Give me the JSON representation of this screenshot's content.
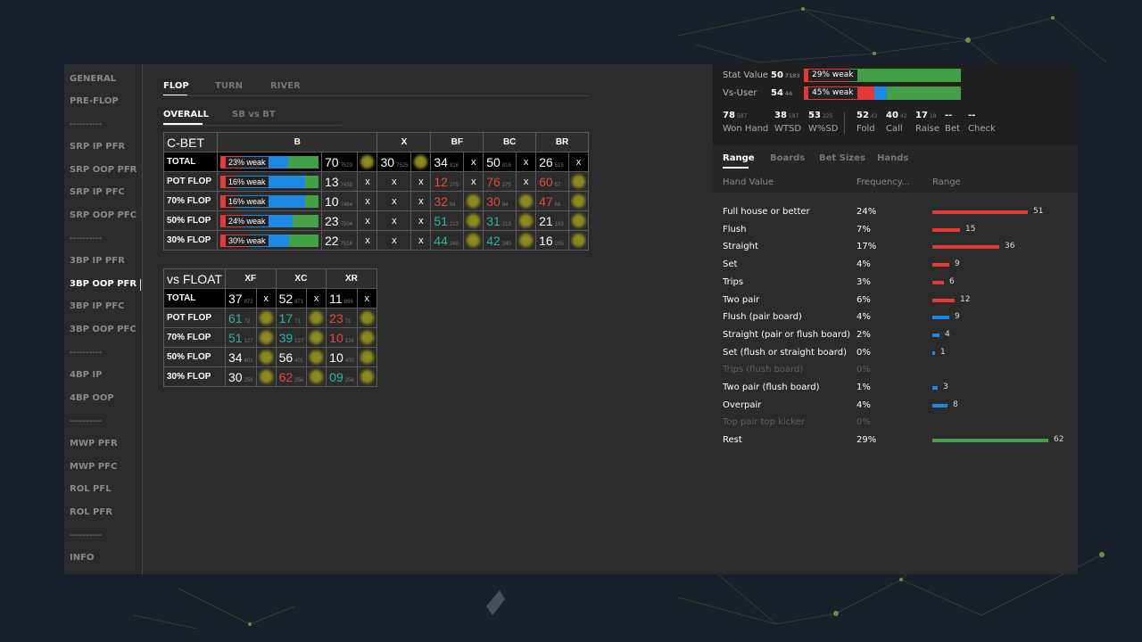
{
  "sidebar": {
    "items": [
      "GENERAL",
      "PRE-FLOP",
      "----------",
      "SRP IP PFR",
      "SRP OOP PFR",
      "SRP IP PFC",
      "SRP OOP PFC",
      "----------",
      "3BP IP PFR",
      "3BP OOP PFR",
      "3BP IP PFC",
      "3BP OOP PFC",
      "----------",
      "4BP IP",
      "4BP OOP",
      "----------",
      "MWP PFR",
      "MWP PFC",
      "ROL PFL",
      "ROL PFR",
      "----------",
      "INFO"
    ],
    "active": "3BP OOP PFR"
  },
  "street_tabs": [
    "FLOP",
    "TURN",
    "RIVER"
  ],
  "sub_tabs": [
    "OVERALL",
    "SB vs BT"
  ],
  "cbet": {
    "title": "C-BET",
    "headers": [
      "B",
      "X",
      "BF",
      "BC",
      "BR"
    ],
    "rows": [
      {
        "label": "TOTAL",
        "weak": "23% weak",
        "pct": [
          23,
          46,
          31
        ],
        "b": "70",
        "bs": "7523",
        "x": "30",
        "xs": "7525",
        "bf": "34",
        "bfs": "816",
        "bfc": "white",
        "bc": "50",
        "bcs": "816",
        "bcc": "white",
        "br": "26",
        "brs": "515",
        "brc": "white"
      },
      {
        "label": "POT FLOP",
        "weak": "16% weak",
        "pct": [
          16,
          70,
          14
        ],
        "b": "13",
        "bs": "7439",
        "x": "x",
        "xs": "",
        "bf": "12",
        "bfs": "275",
        "bfc": "red",
        "bc": "76",
        "bcs": "275",
        "bcc": "red",
        "br": "60",
        "brs": "57",
        "brc": "red"
      },
      {
        "label": "70% FLOP",
        "weak": "16% weak",
        "pct": [
          16,
          70,
          14
        ],
        "b": "10",
        "bs": "7484",
        "x": "x",
        "xs": "",
        "bf": "32",
        "bfs": "84",
        "bfc": "red",
        "bc": "30",
        "bcs": "84",
        "bcc": "red",
        "br": "47",
        "brs": "68",
        "brc": "red"
      },
      {
        "label": "50% FLOP",
        "weak": "24% weak",
        "pct": [
          24,
          50,
          26
        ],
        "b": "23",
        "bs": "7504",
        "x": "x",
        "xs": "",
        "bf": "51",
        "bfs": "213",
        "bfc": "teal",
        "bc": "31",
        "bcs": "213",
        "bcc": "teal",
        "br": "21",
        "brs": "183",
        "brc": "white"
      },
      {
        "label": "30% FLOP",
        "weak": "30% weak",
        "pct": [
          30,
          40,
          30
        ],
        "b": "22",
        "bs": "7516",
        "x": "x",
        "xs": "",
        "bf": "44",
        "bfs": "240",
        "bfc": "teal",
        "bc": "42",
        "bcs": "240",
        "bcc": "teal",
        "br": "16",
        "brs": "205",
        "brc": "white"
      }
    ]
  },
  "float": {
    "title": "vs FLOAT",
    "headers": [
      "XF",
      "XC",
      "XR"
    ],
    "rows": [
      {
        "label": "TOTAL",
        "xf": "37",
        "xfs": "872",
        "xfc": "white",
        "xc": "52",
        "xcs": "871",
        "xcc": "white",
        "xr": "11",
        "xrs": "866",
        "xrc": "white"
      },
      {
        "label": "POT FLOP",
        "xf": "61",
        "xfs": "72",
        "xfc": "teal",
        "xc": "17",
        "xcs": "71",
        "xcc": "teal",
        "xr": "23",
        "xrs": "71",
        "xrc": "red"
      },
      {
        "label": "70% FLOP",
        "xf": "51",
        "xfs": "127",
        "xfc": "teal",
        "xc": "39",
        "xcs": "127",
        "xcc": "teal",
        "xr": "10",
        "xrs": "126",
        "xrc": "red"
      },
      {
        "label": "50% FLOP",
        "xf": "34",
        "xfs": "401",
        "xfc": "white",
        "xc": "56",
        "xcs": "401",
        "xcc": "white",
        "xr": "10",
        "xrs": "400",
        "xrc": "white"
      },
      {
        "label": "30% FLOP",
        "xf": "30",
        "xfs": "256",
        "xfc": "white",
        "xc": "62",
        "xcs": "256",
        "xcc": "red",
        "xr": "09",
        "xrs": "256",
        "xrc": "teal"
      }
    ]
  },
  "stats": {
    "stat_value": {
      "label": "Stat Value",
      "value": "50",
      "sub": "7183",
      "weak": "29% weak",
      "pct": [
        29,
        0,
        71
      ]
    },
    "vs_user": {
      "label": "Vs-User",
      "value": "54",
      "sub": "46",
      "weak": "45% weak",
      "pct": [
        45,
        8,
        47
      ]
    },
    "mini": [
      {
        "v": "78",
        "s": "587",
        "l": "Won Hand"
      },
      {
        "v": "38",
        "s": "587",
        "l": "WTSD"
      },
      {
        "v": "53",
        "s": "225",
        "l": "W%SD"
      },
      {
        "v": "52",
        "s": "42",
        "l": "Fold"
      },
      {
        "v": "40",
        "s": "42",
        "l": "Call"
      },
      {
        "v": "17",
        "s": "18",
        "l": "Raise"
      },
      {
        "v": "--",
        "s": "",
        "l": "Bet"
      },
      {
        "v": "--",
        "s": "",
        "l": "Check"
      }
    ]
  },
  "range_tabs": [
    "Range",
    "Boards",
    "Bet Sizes",
    "Hands"
  ],
  "range_cols": [
    "Hand Value",
    "Frequency...",
    "Range"
  ],
  "range_rows": [
    {
      "name": "Full house or better",
      "freq": "24%",
      "count": "51",
      "color": "#e53935",
      "dim": false
    },
    {
      "name": "Flush",
      "freq": "7%",
      "count": "15",
      "color": "#e53935",
      "dim": false
    },
    {
      "name": "Straight",
      "freq": "17%",
      "count": "36",
      "color": "#e53935",
      "dim": false
    },
    {
      "name": "Set",
      "freq": "4%",
      "count": "9",
      "color": "#e53935",
      "dim": false
    },
    {
      "name": "Trips",
      "freq": "3%",
      "count": "6",
      "color": "#e53935",
      "dim": false
    },
    {
      "name": "Two pair",
      "freq": "6%",
      "count": "12",
      "color": "#e53935",
      "dim": false
    },
    {
      "name": "Flush (pair board)",
      "freq": "4%",
      "count": "9",
      "color": "#1e88e5",
      "dim": false
    },
    {
      "name": "Straight (pair or flush board)",
      "freq": "2%",
      "count": "4",
      "color": "#1e88e5",
      "dim": false
    },
    {
      "name": "Set (flush or straight board)",
      "freq": "0%",
      "count": "1",
      "color": "#1e88e5",
      "dim": false
    },
    {
      "name": "Trips (flush board)",
      "freq": "0%",
      "count": "",
      "color": "#1e88e5",
      "dim": true
    },
    {
      "name": "Two pair (flush board)",
      "freq": "1%",
      "count": "3",
      "color": "#1e88e5",
      "dim": false
    },
    {
      "name": "Overpair",
      "freq": "4%",
      "count": "8",
      "color": "#1e88e5",
      "dim": false
    },
    {
      "name": "Top pair top kicker",
      "freq": "0%",
      "count": "",
      "color": "#1e88e5",
      "dim": true
    },
    {
      "name": "Rest",
      "freq": "29%",
      "count": "62",
      "color": "#43a047",
      "dim": false
    }
  ]
}
